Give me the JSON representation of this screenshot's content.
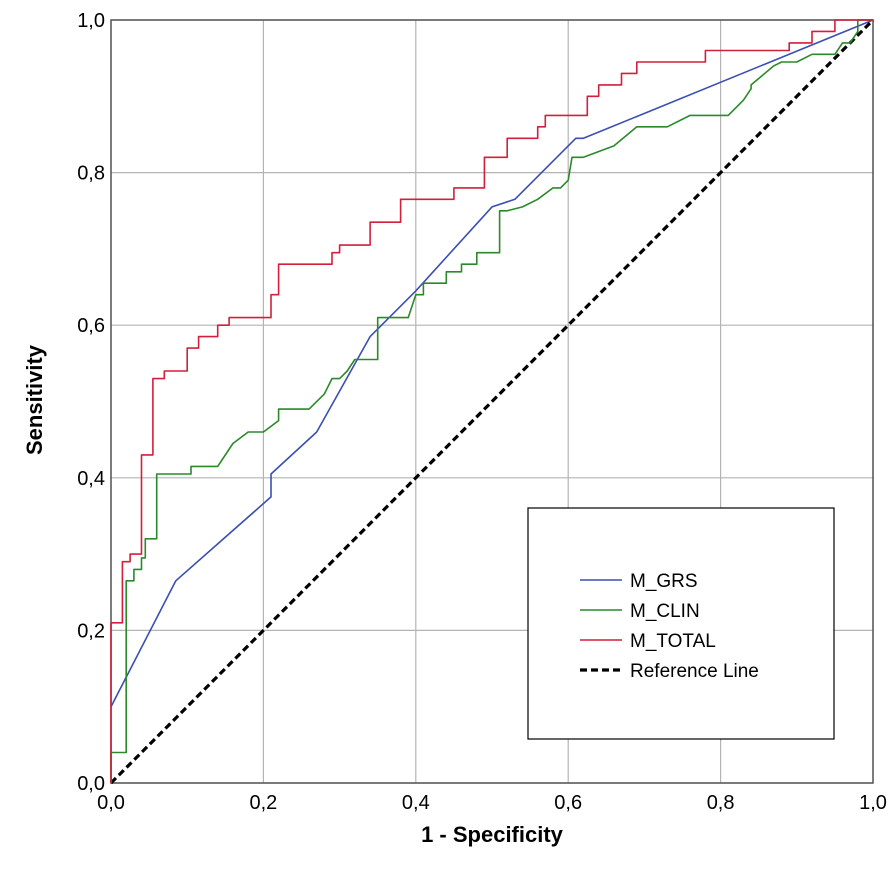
{
  "chart_data": {
    "type": "line",
    "title": "",
    "xlabel": "1 - Specificity",
    "ylabel": "Sensitivity",
    "xlim": [
      0,
      1
    ],
    "ylim": [
      0,
      1
    ],
    "grid": true,
    "legend_position": "lower-right",
    "x_ticks": [
      {
        "value": 0.0,
        "label": "0,0"
      },
      {
        "value": 0.2,
        "label": "0,2"
      },
      {
        "value": 0.4,
        "label": "0,4"
      },
      {
        "value": 0.6,
        "label": "0,6"
      },
      {
        "value": 0.8,
        "label": "0,8"
      },
      {
        "value": 1.0,
        "label": "1,0"
      }
    ],
    "y_ticks": [
      {
        "value": 0.0,
        "label": "0,0"
      },
      {
        "value": 0.2,
        "label": "0,2"
      },
      {
        "value": 0.4,
        "label": "0,4"
      },
      {
        "value": 0.6,
        "label": "0,6"
      },
      {
        "value": 0.8,
        "label": "0,8"
      },
      {
        "value": 1.0,
        "label": "1,0"
      }
    ],
    "series": [
      {
        "name": "M_GRS",
        "color": "#3a4fb0",
        "dash": "",
        "points": [
          [
            0.0,
            0.1
          ],
          [
            0.085,
            0.265
          ],
          [
            0.21,
            0.375
          ],
          [
            0.21,
            0.405
          ],
          [
            0.27,
            0.46
          ],
          [
            0.34,
            0.585
          ],
          [
            0.4,
            0.645
          ],
          [
            0.5,
            0.755
          ],
          [
            0.53,
            0.765
          ],
          [
            0.61,
            0.845
          ],
          [
            0.62,
            0.845
          ],
          [
            1.0,
            1.0
          ]
        ]
      },
      {
        "name": "M_CLIN",
        "color": "#2a8a2a",
        "dash": "",
        "points": [
          [
            0.0,
            0.0
          ],
          [
            0.0,
            0.04
          ],
          [
            0.02,
            0.04
          ],
          [
            0.02,
            0.265
          ],
          [
            0.03,
            0.265
          ],
          [
            0.03,
            0.28
          ],
          [
            0.04,
            0.28
          ],
          [
            0.04,
            0.295
          ],
          [
            0.045,
            0.295
          ],
          [
            0.045,
            0.32
          ],
          [
            0.06,
            0.32
          ],
          [
            0.06,
            0.405
          ],
          [
            0.105,
            0.405
          ],
          [
            0.105,
            0.415
          ],
          [
            0.14,
            0.415
          ],
          [
            0.16,
            0.445
          ],
          [
            0.18,
            0.46
          ],
          [
            0.2,
            0.46
          ],
          [
            0.22,
            0.475
          ],
          [
            0.22,
            0.49
          ],
          [
            0.26,
            0.49
          ],
          [
            0.28,
            0.51
          ],
          [
            0.29,
            0.53
          ],
          [
            0.3,
            0.53
          ],
          [
            0.31,
            0.54
          ],
          [
            0.32,
            0.555
          ],
          [
            0.35,
            0.555
          ],
          [
            0.35,
            0.61
          ],
          [
            0.39,
            0.61
          ],
          [
            0.4,
            0.64
          ],
          [
            0.41,
            0.64
          ],
          [
            0.41,
            0.655
          ],
          [
            0.44,
            0.655
          ],
          [
            0.44,
            0.67
          ],
          [
            0.46,
            0.67
          ],
          [
            0.46,
            0.68
          ],
          [
            0.48,
            0.68
          ],
          [
            0.48,
            0.695
          ],
          [
            0.51,
            0.695
          ],
          [
            0.51,
            0.75
          ],
          [
            0.52,
            0.75
          ],
          [
            0.54,
            0.755
          ],
          [
            0.56,
            0.765
          ],
          [
            0.58,
            0.78
          ],
          [
            0.59,
            0.78
          ],
          [
            0.6,
            0.79
          ],
          [
            0.605,
            0.82
          ],
          [
            0.62,
            0.82
          ],
          [
            0.66,
            0.835
          ],
          [
            0.69,
            0.86
          ],
          [
            0.73,
            0.86
          ],
          [
            0.76,
            0.875
          ],
          [
            0.81,
            0.875
          ],
          [
            0.83,
            0.895
          ],
          [
            0.84,
            0.91
          ],
          [
            0.84,
            0.915
          ],
          [
            0.87,
            0.94
          ],
          [
            0.88,
            0.945
          ],
          [
            0.9,
            0.945
          ],
          [
            0.92,
            0.955
          ],
          [
            0.95,
            0.955
          ],
          [
            0.96,
            0.97
          ],
          [
            0.97,
            0.97
          ],
          [
            0.98,
            0.985
          ],
          [
            0.98,
            1.0
          ],
          [
            1.0,
            1.0
          ]
        ]
      },
      {
        "name": "M_TOTAL",
        "color": "#d21f3c",
        "dash": "",
        "points": [
          [
            0.0,
            0.0
          ],
          [
            0.0,
            0.21
          ],
          [
            0.015,
            0.21
          ],
          [
            0.015,
            0.29
          ],
          [
            0.025,
            0.29
          ],
          [
            0.025,
            0.3
          ],
          [
            0.04,
            0.3
          ],
          [
            0.04,
            0.43
          ],
          [
            0.055,
            0.43
          ],
          [
            0.055,
            0.53
          ],
          [
            0.07,
            0.53
          ],
          [
            0.07,
            0.54
          ],
          [
            0.1,
            0.54
          ],
          [
            0.1,
            0.57
          ],
          [
            0.115,
            0.57
          ],
          [
            0.115,
            0.585
          ],
          [
            0.14,
            0.585
          ],
          [
            0.14,
            0.6
          ],
          [
            0.155,
            0.6
          ],
          [
            0.155,
            0.61
          ],
          [
            0.21,
            0.61
          ],
          [
            0.21,
            0.64
          ],
          [
            0.22,
            0.64
          ],
          [
            0.22,
            0.68
          ],
          [
            0.29,
            0.68
          ],
          [
            0.29,
            0.695
          ],
          [
            0.3,
            0.695
          ],
          [
            0.3,
            0.705
          ],
          [
            0.34,
            0.705
          ],
          [
            0.34,
            0.735
          ],
          [
            0.38,
            0.735
          ],
          [
            0.38,
            0.765
          ],
          [
            0.45,
            0.765
          ],
          [
            0.45,
            0.78
          ],
          [
            0.49,
            0.78
          ],
          [
            0.49,
            0.82
          ],
          [
            0.52,
            0.82
          ],
          [
            0.52,
            0.845
          ],
          [
            0.56,
            0.845
          ],
          [
            0.56,
            0.86
          ],
          [
            0.57,
            0.86
          ],
          [
            0.57,
            0.875
          ],
          [
            0.625,
            0.875
          ],
          [
            0.625,
            0.9
          ],
          [
            0.64,
            0.9
          ],
          [
            0.64,
            0.915
          ],
          [
            0.67,
            0.915
          ],
          [
            0.67,
            0.93
          ],
          [
            0.69,
            0.93
          ],
          [
            0.69,
            0.945
          ],
          [
            0.78,
            0.945
          ],
          [
            0.78,
            0.96
          ],
          [
            0.89,
            0.96
          ],
          [
            0.89,
            0.97
          ],
          [
            0.92,
            0.97
          ],
          [
            0.92,
            0.985
          ],
          [
            0.95,
            0.985
          ],
          [
            0.95,
            1.0
          ],
          [
            1.0,
            1.0
          ]
        ]
      },
      {
        "name": "Reference Line",
        "color": "#000000",
        "dash": "dashed",
        "points": [
          [
            0.0,
            0.0
          ],
          [
            1.0,
            1.0
          ]
        ]
      }
    ]
  }
}
